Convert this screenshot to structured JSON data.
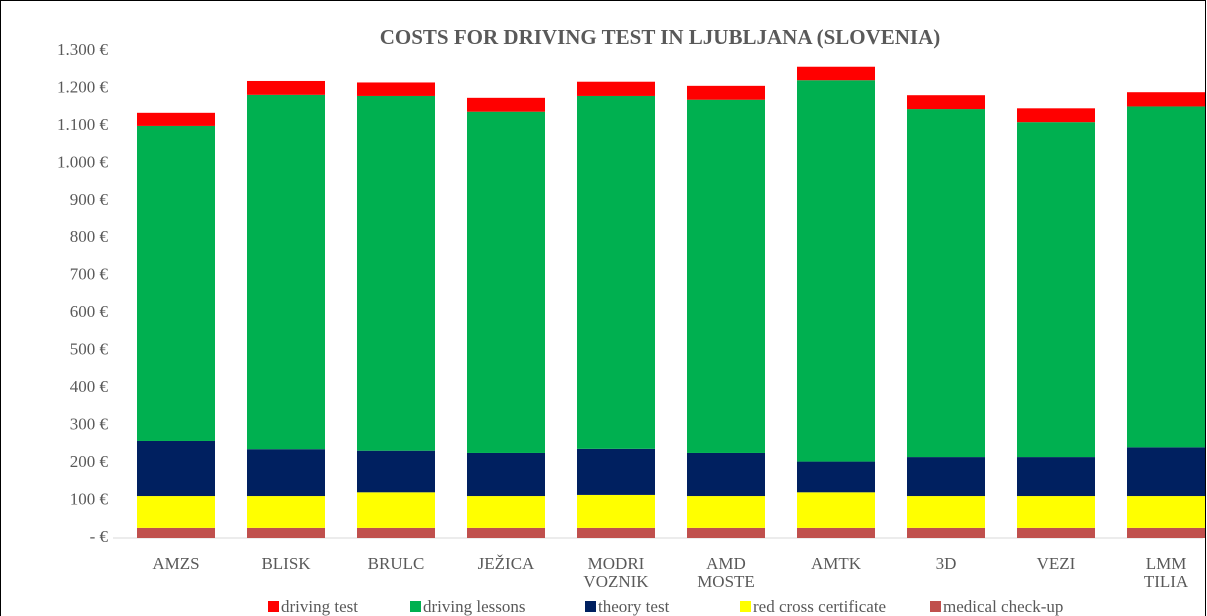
{
  "chart_data": {
    "type": "stacked_bar",
    "title": "COSTS FOR DRIVING TEST IN LJUBLJANA (SLOVENIA)",
    "categories": [
      "AMZS",
      "BLISK",
      "BRULC",
      "JEŽICA",
      "MODRI VOZNIK",
      "AMD MOSTE",
      "AMTK",
      "3D",
      "VEZI",
      "LMM TILIA"
    ],
    "series": [
      {
        "name": "medical check-up",
        "color": "#c0504d",
        "values": [
          27,
          27,
          27,
          27,
          27,
          27,
          27,
          27,
          27,
          27
        ]
      },
      {
        "name": "red cross certificate",
        "color": "#ffff00",
        "values": [
          85,
          85,
          95,
          85,
          88,
          85,
          95,
          85,
          85,
          85
        ]
      },
      {
        "name": "theory test",
        "color": "#002060",
        "values": [
          147,
          125,
          111,
          115,
          123,
          115,
          82,
          104,
          104,
          130
        ]
      },
      {
        "name": "driving lessons",
        "color": "#00b050",
        "values": [
          841,
          946,
          947,
          911,
          942,
          943,
          1018,
          929,
          894,
          910
        ]
      },
      {
        "name": "driving test",
        "color": "#ff0000",
        "values": [
          35,
          37,
          36,
          37,
          38,
          37,
          36,
          37,
          37,
          38
        ]
      }
    ],
    "ylim": [
      0,
      1300
    ],
    "yticks": [
      {
        "value": 0,
        "label": "-  €"
      },
      {
        "value": 100,
        "label": "100 €"
      },
      {
        "value": 200,
        "label": "200 €"
      },
      {
        "value": 300,
        "label": "300 €"
      },
      {
        "value": 400,
        "label": "400 €"
      },
      {
        "value": 500,
        "label": "500 €"
      },
      {
        "value": 600,
        "label": "600 €"
      },
      {
        "value": 700,
        "label": "700 €"
      },
      {
        "value": 800,
        "label": "800 €"
      },
      {
        "value": 900,
        "label": "900 €"
      },
      {
        "value": 1000,
        "label": "1.000 €"
      },
      {
        "value": 1100,
        "label": "1.100 €"
      },
      {
        "value": 1200,
        "label": "1.200 €"
      },
      {
        "value": 1300,
        "label": "1.300 €"
      }
    ],
    "grid": false
  }
}
